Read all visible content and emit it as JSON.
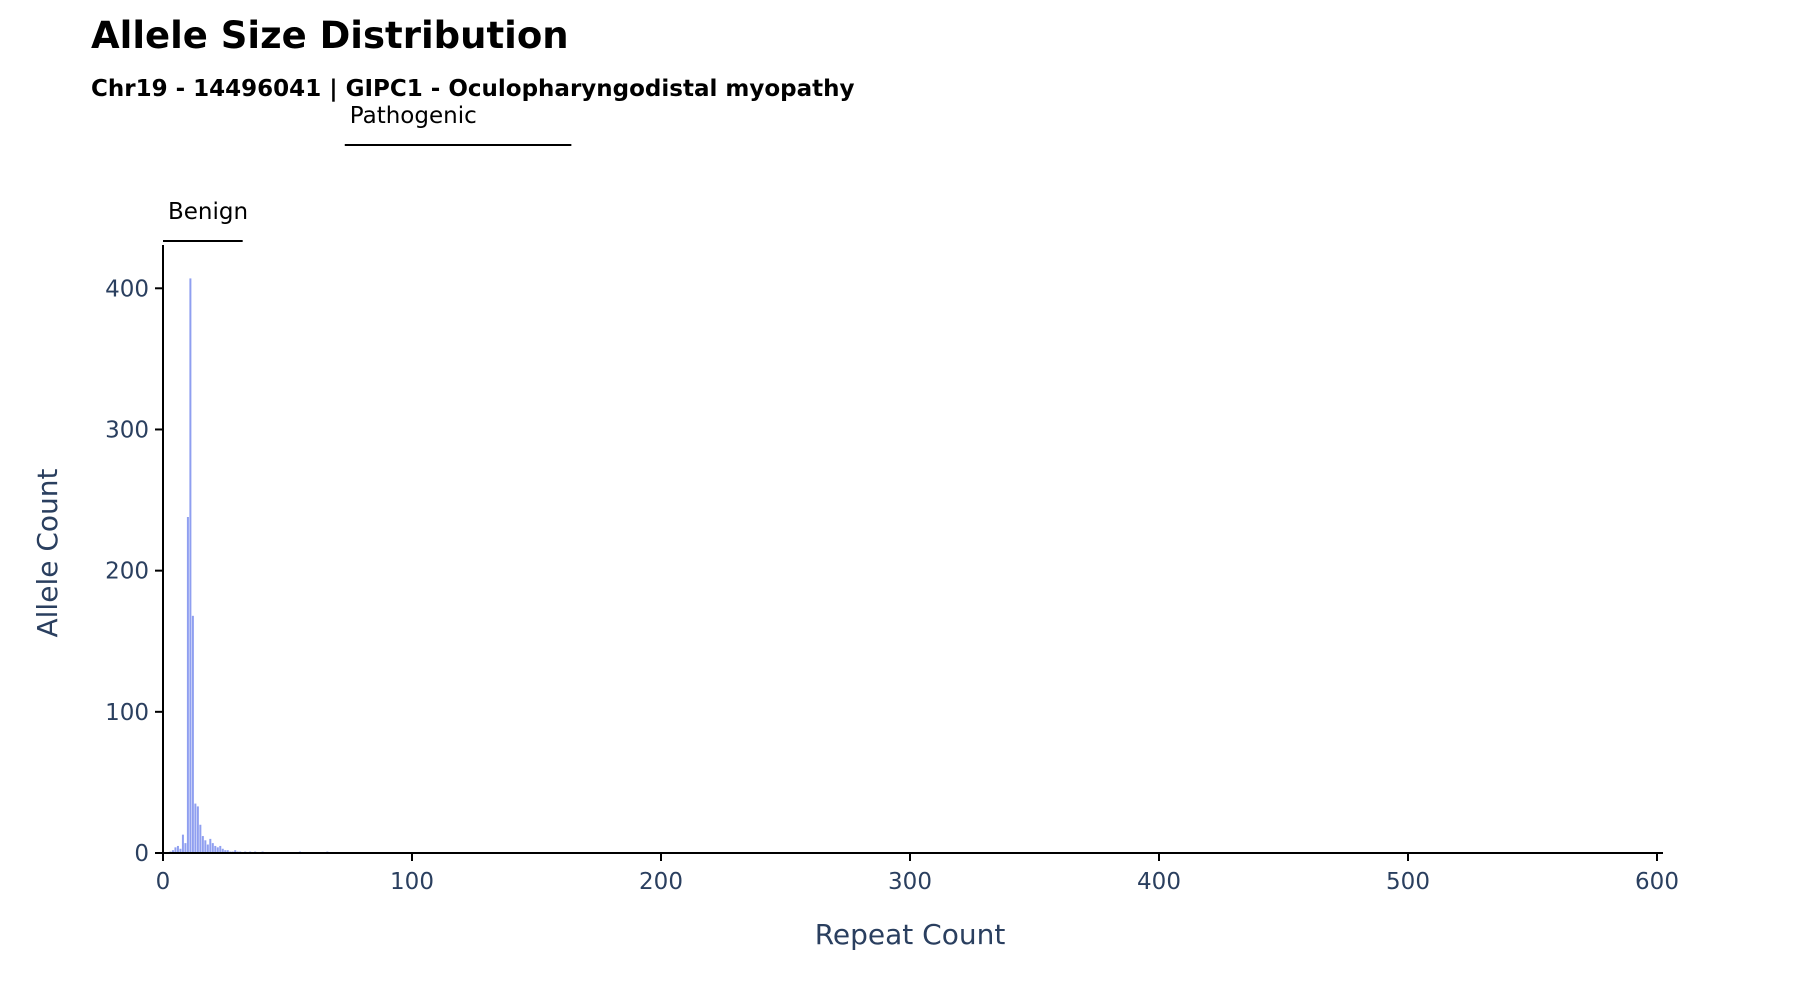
{
  "title": "Allele Size Distribution",
  "subtitle": "Chr19 - 14496041 | GIPC1 - Oculopharyngodistal myopathy",
  "colors": {
    "bar": "#8f9ff0",
    "axis": "#000000",
    "text": "#2a3f5f"
  },
  "chart_data": {
    "type": "bar",
    "xlabel": "Repeat Count",
    "ylabel": "Allele Count",
    "xlim": [
      0,
      600
    ],
    "ylim": [
      0,
      425
    ],
    "xticks": [
      0,
      100,
      200,
      300,
      400,
      500,
      600
    ],
    "yticks": [
      0,
      100,
      200,
      300,
      400
    ],
    "grid": false,
    "ranges": [
      {
        "label": "Benign",
        "start": 0,
        "end": 32
      },
      {
        "label": "Pathogenic",
        "start": 73,
        "end": 164
      }
    ],
    "x": [
      3,
      4,
      5,
      6,
      7,
      8,
      9,
      10,
      11,
      12,
      13,
      14,
      15,
      16,
      17,
      18,
      19,
      20,
      21,
      22,
      23,
      24,
      25,
      26,
      27,
      28,
      29,
      30,
      31,
      33,
      35,
      37,
      40,
      55,
      66
    ],
    "values": [
      1,
      2,
      4,
      5,
      3,
      13,
      7,
      238,
      407,
      168,
      35,
      33,
      20,
      12,
      9,
      6,
      10,
      7,
      5,
      4,
      5,
      3,
      2,
      2,
      1,
      1,
      2,
      1,
      1,
      1,
      1,
      1,
      1,
      1,
      1
    ]
  }
}
